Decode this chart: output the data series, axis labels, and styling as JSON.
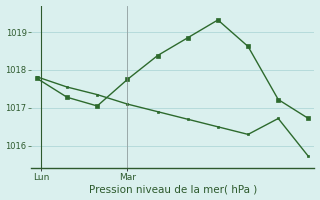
{
  "line1_x": [
    0,
    1,
    2,
    3,
    4,
    5,
    6,
    7,
    8,
    9
  ],
  "line1_y": [
    1017.78,
    1017.28,
    1017.05,
    1017.75,
    1018.38,
    1018.85,
    1019.32,
    1018.62,
    1017.22,
    1016.72
  ],
  "line2_x": [
    0,
    1,
    2,
    3,
    4,
    5,
    6,
    7,
    8,
    9
  ],
  "line2_y": [
    1017.82,
    1017.55,
    1017.35,
    1017.1,
    1016.9,
    1016.7,
    1016.5,
    1016.3,
    1016.72,
    1015.72
  ],
  "line_color": "#2d6a2d",
  "bg_color": "#daf0ee",
  "grid_color": "#b0d8d8",
  "xlabel": "Pression niveau de la mer( hPa )",
  "ylim": [
    1015.4,
    1019.7
  ],
  "yticks": [
    1016,
    1017,
    1018,
    1019
  ],
  "lun_x": 0.15,
  "mar_x": 3.0,
  "xlim": [
    -0.2,
    9.2
  ]
}
